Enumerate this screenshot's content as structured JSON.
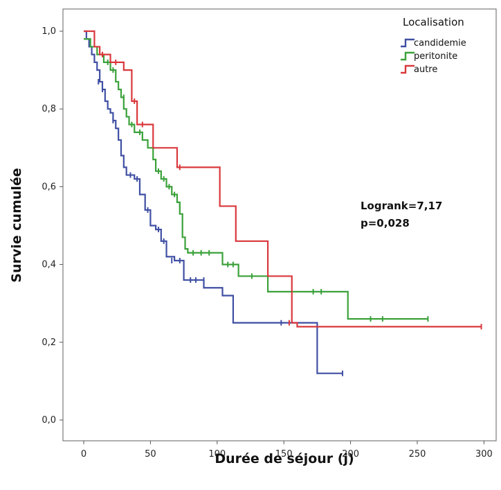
{
  "chart_data": {
    "type": "line",
    "subtype": "kaplan-meier",
    "xlabel": "Durée de séjour (j)",
    "ylabel": "Survie cumulée",
    "xlim": [
      -15,
      305
    ],
    "ylim": [
      -0.05,
      1.06
    ],
    "x_ticks": [
      0,
      50,
      100,
      150,
      200,
      250,
      300
    ],
    "x_tick_labels": [
      "0",
      "50",
      "100",
      "150",
      "200",
      "250",
      "300"
    ],
    "y_ticks": [
      0.0,
      0.2,
      0.4,
      0.6,
      0.8,
      1.0
    ],
    "y_tick_labels": [
      "0,0",
      "0,2",
      "0,4",
      "0,6",
      "0,8",
      "1,0"
    ],
    "legend": {
      "title": "Localisation",
      "position": "top-right",
      "entries": [
        "candidemie",
        "peritonite",
        "autre"
      ]
    },
    "annotations": [
      {
        "line1": "Logrank=7,17",
        "line2": "p=0,028"
      }
    ],
    "series": [
      {
        "name": "candidemie",
        "color": "#3f4fa3",
        "steps": [
          [
            0,
            1.0
          ],
          [
            2,
            0.98
          ],
          [
            4,
            0.96
          ],
          [
            6,
            0.94
          ],
          [
            8,
            0.92
          ],
          [
            10,
            0.9
          ],
          [
            12,
            0.87
          ],
          [
            14,
            0.85
          ],
          [
            16,
            0.82
          ],
          [
            18,
            0.8
          ],
          [
            20,
            0.79
          ],
          [
            22,
            0.77
          ],
          [
            24,
            0.75
          ],
          [
            26,
            0.72
          ],
          [
            28,
            0.68
          ],
          [
            30,
            0.65
          ],
          [
            32,
            0.63
          ],
          [
            38,
            0.62
          ],
          [
            42,
            0.58
          ],
          [
            46,
            0.54
          ],
          [
            50,
            0.5
          ],
          [
            54,
            0.49
          ],
          [
            58,
            0.46
          ],
          [
            62,
            0.42
          ],
          [
            68,
            0.41
          ],
          [
            75,
            0.36
          ],
          [
            90,
            0.34
          ],
          [
            104,
            0.32
          ],
          [
            112,
            0.25
          ],
          [
            175,
            0.12
          ],
          [
            194,
            0.12
          ]
        ],
        "censored": [
          [
            11,
            0.87
          ],
          [
            14,
            0.85
          ],
          [
            22,
            0.77
          ],
          [
            35,
            0.63
          ],
          [
            40,
            0.62
          ],
          [
            48,
            0.54
          ],
          [
            56,
            0.49
          ],
          [
            60,
            0.46
          ],
          [
            66,
            0.41
          ],
          [
            72,
            0.41
          ],
          [
            80,
            0.36
          ],
          [
            84,
            0.36
          ],
          [
            90,
            0.36
          ],
          [
            148,
            0.25
          ],
          [
            194,
            0.12
          ]
        ]
      },
      {
        "name": "peritonite",
        "color": "#3aa13a",
        "steps": [
          [
            0,
            0.98
          ],
          [
            5,
            0.96
          ],
          [
            10,
            0.94
          ],
          [
            15,
            0.92
          ],
          [
            20,
            0.9
          ],
          [
            24,
            0.87
          ],
          [
            26,
            0.85
          ],
          [
            28,
            0.83
          ],
          [
            30,
            0.8
          ],
          [
            32,
            0.78
          ],
          [
            34,
            0.76
          ],
          [
            38,
            0.74
          ],
          [
            44,
            0.72
          ],
          [
            48,
            0.7
          ],
          [
            52,
            0.67
          ],
          [
            54,
            0.64
          ],
          [
            58,
            0.62
          ],
          [
            62,
            0.6
          ],
          [
            66,
            0.58
          ],
          [
            70,
            0.56
          ],
          [
            72,
            0.53
          ],
          [
            74,
            0.47
          ],
          [
            76,
            0.44
          ],
          [
            78,
            0.43
          ],
          [
            104,
            0.4
          ],
          [
            116,
            0.37
          ],
          [
            138,
            0.33
          ],
          [
            148,
            0.33
          ],
          [
            198,
            0.26
          ],
          [
            258,
            0.26
          ]
        ],
        "censored": [
          [
            18,
            0.92
          ],
          [
            22,
            0.9
          ],
          [
            30,
            0.83
          ],
          [
            36,
            0.76
          ],
          [
            42,
            0.74
          ],
          [
            56,
            0.64
          ],
          [
            60,
            0.62
          ],
          [
            64,
            0.6
          ],
          [
            68,
            0.58
          ],
          [
            72,
            0.55
          ],
          [
            82,
            0.43
          ],
          [
            88,
            0.43
          ],
          [
            94,
            0.43
          ],
          [
            108,
            0.4
          ],
          [
            112,
            0.4
          ],
          [
            126,
            0.37
          ],
          [
            172,
            0.33
          ],
          [
            178,
            0.33
          ],
          [
            215,
            0.26
          ],
          [
            224,
            0.26
          ],
          [
            258,
            0.26
          ]
        ]
      },
      {
        "name": "autre",
        "color": "#d9383c",
        "steps": [
          [
            0,
            1.0
          ],
          [
            8,
            0.96
          ],
          [
            12,
            0.94
          ],
          [
            20,
            0.92
          ],
          [
            30,
            0.9
          ],
          [
            36,
            0.82
          ],
          [
            40,
            0.76
          ],
          [
            52,
            0.7
          ],
          [
            70,
            0.65
          ],
          [
            102,
            0.55
          ],
          [
            114,
            0.46
          ],
          [
            138,
            0.37
          ],
          [
            156,
            0.25
          ],
          [
            160,
            0.24
          ],
          [
            298,
            0.24
          ]
        ],
        "censored": [
          [
            14,
            0.94
          ],
          [
            24,
            0.92
          ],
          [
            38,
            0.82
          ],
          [
            44,
            0.76
          ],
          [
            72,
            0.65
          ],
          [
            154,
            0.25
          ],
          [
            298,
            0.24
          ]
        ]
      }
    ]
  }
}
